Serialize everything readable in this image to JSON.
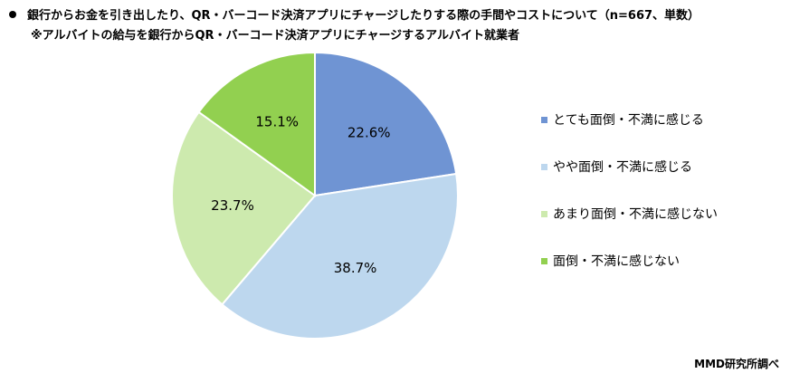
{
  "header": {
    "title": "銀行からお金を引き出したり、QR・バーコード決済アプリにチャージしたりする際の手間やコストについて（n=667、単数）",
    "subtitle": "※アルバイトの給与を銀行からQR・バーコード決済アプリにチャージするアルバイト就業者"
  },
  "chart_data": {
    "type": "pie",
    "categories": [
      "とても面倒・不満に感じる",
      "やや面倒・不満に感じる",
      "あまり面倒・不満に感じない",
      "面倒・不満に感じない"
    ],
    "values": [
      22.6,
      38.7,
      23.7,
      15.1
    ],
    "value_labels": [
      "22.6%",
      "38.7%",
      "23.7%",
      "15.1%"
    ],
    "colors": [
      "#6f94d3",
      "#bdd7ee",
      "#cdeaae",
      "#92d050"
    ],
    "start_angle": "12 o'clock",
    "direction": "clockwise",
    "legend_position": "right"
  },
  "footer": {
    "source": "MMD研究所調べ"
  }
}
